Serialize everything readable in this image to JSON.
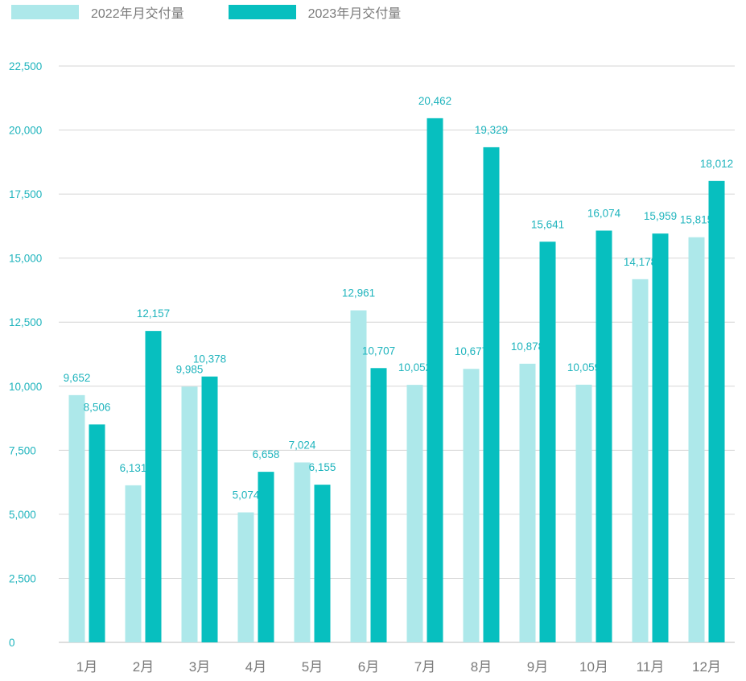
{
  "chart_data": {
    "type": "bar",
    "categories": [
      "1月",
      "2月",
      "3月",
      "4月",
      "5月",
      "6月",
      "7月",
      "8月",
      "9月",
      "10月",
      "11月",
      "12月"
    ],
    "series": [
      {
        "name": "2022年月交付量",
        "color": "#ade8ea",
        "values": [
          9652,
          6131,
          9985,
          5074,
          7024,
          12961,
          10052,
          10677,
          10878,
          10059,
          14178,
          15815
        ],
        "labels": [
          "9,652",
          "6,131",
          "9,985",
          "5,074",
          "7,024",
          "12,961",
          "10,052",
          "10,677",
          "10,878",
          "10,059",
          "14,178",
          "15,815"
        ]
      },
      {
        "name": "2023年月交付量",
        "color": "#07bfbf",
        "values": [
          8506,
          12157,
          10378,
          6658,
          6155,
          10707,
          20462,
          19329,
          15641,
          16074,
          15959,
          18012
        ],
        "labels": [
          "8,506",
          "12,157",
          "10,378",
          "6,658",
          "6,155",
          "10,707",
          "20,462",
          "19,329",
          "15,641",
          "16,074",
          "15,959",
          "18,012"
        ]
      }
    ],
    "yticks": [
      0,
      2500,
      5000,
      7500,
      10000,
      12500,
      15000,
      17500,
      20000,
      22500
    ],
    "ytick_labels": [
      "0",
      "2,500",
      "5,000",
      "7,500",
      "10,000",
      "12,500",
      "15,000",
      "17,500",
      "20,000",
      "22,500"
    ],
    "ylim": [
      0,
      22500
    ],
    "grid": true,
    "legend_position": "top-left"
  }
}
